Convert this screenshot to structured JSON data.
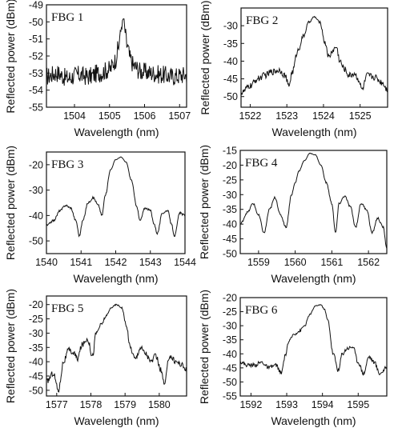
{
  "chart_data": [
    {
      "type": "line",
      "title": "FBG 1",
      "xlabel": "Wavelength (nm)",
      "ylabel": "Reflected power (dBm)",
      "xlim": [
        1503.2,
        1507.2
      ],
      "ylim": [
        -55,
        -49
      ],
      "xticks": [
        1504,
        1505,
        1506,
        1507
      ],
      "yticks": [
        -55,
        -54,
        -53,
        -52,
        -51,
        -50,
        -49
      ],
      "noise": 0.55,
      "x": [
        1503.2,
        1503.5,
        1503.8,
        1504.1,
        1504.4,
        1504.7,
        1505.0,
        1505.15,
        1505.25,
        1505.3,
        1505.35,
        1505.4,
        1505.45,
        1505.5,
        1505.6,
        1505.7,
        1505.9,
        1506.2,
        1506.5,
        1506.8,
        1507.2
      ],
      "y": [
        -53.2,
        -53.0,
        -53.3,
        -53.1,
        -53.2,
        -53.0,
        -52.8,
        -52.3,
        -51.6,
        -50.8,
        -50.2,
        -49.8,
        -50.6,
        -51.4,
        -52.2,
        -52.6,
        -52.9,
        -53.0,
        -53.1,
        -53.2,
        -53.1
      ]
    },
    {
      "type": "line",
      "title": "FBG 2",
      "xlabel": "Wavelength (nm)",
      "ylabel": "Reflected power (dBm)",
      "xlim": [
        1521.75,
        1525.75
      ],
      "ylim": [
        -53,
        -25
      ],
      "xticks": [
        1522,
        1523,
        1524,
        1525
      ],
      "yticks": [
        -50,
        -45,
        -40,
        -35,
        -30
      ],
      "noise": 0.9,
      "x": [
        1521.75,
        1522.0,
        1522.2,
        1522.4,
        1522.6,
        1522.8,
        1522.95,
        1523.05,
        1523.15,
        1523.3,
        1523.45,
        1523.6,
        1523.75,
        1523.9,
        1524.05,
        1524.15,
        1524.25,
        1524.35,
        1524.45,
        1524.55,
        1524.7,
        1524.85,
        1524.95,
        1525.05,
        1525.2,
        1525.4,
        1525.6,
        1525.75
      ],
      "y": [
        -49,
        -47,
        -45,
        -44,
        -43,
        -42.5,
        -44,
        -47,
        -43,
        -37,
        -33,
        -29,
        -27.5,
        -29,
        -35,
        -39,
        -37,
        -36,
        -40,
        -42,
        -44,
        -43.5,
        -45,
        -48,
        -44,
        -44.5,
        -46,
        -48
      ]
    },
    {
      "type": "line",
      "title": "FBG 3",
      "xlabel": "Wavelength (nm)",
      "ylabel": "Reflected power (dBm)",
      "xlim": [
        1540,
        1544
      ],
      "ylim": [
        -55,
        -15
      ],
      "xticks": [
        1540,
        1541,
        1542,
        1543,
        1544
      ],
      "yticks": [
        -50,
        -40,
        -30,
        -20
      ],
      "noise": 0.4,
      "x": [
        1540.0,
        1540.2,
        1540.4,
        1540.55,
        1540.7,
        1540.85,
        1540.95,
        1541.05,
        1541.2,
        1541.35,
        1541.5,
        1541.6,
        1541.7,
        1541.85,
        1542.0,
        1542.15,
        1542.3,
        1542.45,
        1542.6,
        1542.7,
        1542.85,
        1543.0,
        1543.1,
        1543.2,
        1543.35,
        1543.5,
        1543.6,
        1543.7,
        1543.85,
        1544.0
      ],
      "y": [
        -44,
        -42,
        -38,
        -36,
        -37,
        -42,
        -48,
        -42,
        -35,
        -33,
        -36,
        -40,
        -32,
        -22,
        -18,
        -17,
        -19,
        -26,
        -36,
        -42,
        -37,
        -38,
        -43,
        -47,
        -39,
        -38,
        -43,
        -48,
        -39,
        -40
      ]
    },
    {
      "type": "line",
      "title": "FBG 4",
      "xlabel": "Wavelength (nm)",
      "ylabel": "Reflected power (dBm)",
      "xlim": [
        1558.5,
        1562.5
      ],
      "ylim": [
        -50,
        -15
      ],
      "xticks": [
        1559,
        1560,
        1561,
        1562
      ],
      "yticks": [
        -50,
        -45,
        -40,
        -35,
        -30,
        -25,
        -20,
        -15
      ],
      "noise": 0.35,
      "x": [
        1558.5,
        1558.7,
        1558.85,
        1559.0,
        1559.15,
        1559.3,
        1559.45,
        1559.6,
        1559.75,
        1559.9,
        1560.0,
        1560.1,
        1560.25,
        1560.4,
        1560.55,
        1560.7,
        1560.85,
        1561.0,
        1561.1,
        1561.2,
        1561.35,
        1561.5,
        1561.65,
        1561.8,
        1561.95,
        1562.1,
        1562.25,
        1562.4,
        1562.5
      ],
      "y": [
        -40,
        -36,
        -33,
        -37,
        -43,
        -35,
        -31,
        -37,
        -41,
        -30,
        -26,
        -22,
        -18.5,
        -16,
        -16.5,
        -20,
        -26,
        -33,
        -43,
        -33,
        -30.5,
        -34,
        -41,
        -33,
        -35,
        -43,
        -38,
        -41,
        -48
      ]
    },
    {
      "type": "line",
      "title": "FBG 5",
      "xlabel": "Wavelength (nm)",
      "ylabel": "Reflected power (dBm)",
      "xlim": [
        1576.7,
        1580.8
      ],
      "ylim": [
        -52,
        -17
      ],
      "xticks": [
        1577,
        1578,
        1579,
        1580
      ],
      "yticks": [
        -50,
        -45,
        -40,
        -35,
        -30,
        -25,
        -20
      ],
      "noise": 1.0,
      "x": [
        1576.7,
        1576.9,
        1577.05,
        1577.2,
        1577.35,
        1577.5,
        1577.6,
        1577.75,
        1577.9,
        1578.05,
        1578.15,
        1578.3,
        1578.45,
        1578.6,
        1578.75,
        1578.9,
        1579.05,
        1579.15,
        1579.3,
        1579.45,
        1579.6,
        1579.75,
        1579.9,
        1580.05,
        1580.15,
        1580.3,
        1580.5,
        1580.65,
        1580.8
      ],
      "y": [
        -47,
        -44,
        -50,
        -40,
        -36,
        -37,
        -39,
        -34,
        -32,
        -38,
        -30,
        -27,
        -24,
        -21,
        -20,
        -21,
        -28,
        -35,
        -39,
        -35,
        -37,
        -40,
        -38,
        -43,
        -48,
        -38,
        -40,
        -41,
        -43
      ]
    },
    {
      "type": "line",
      "title": "FBG 6",
      "xlabel": "Wavelength (nm)",
      "ylabel": "Reflected power (dBm)",
      "xlim": [
        1591.7,
        1595.8
      ],
      "ylim": [
        -55,
        -20
      ],
      "xticks": [
        1592,
        1593,
        1594,
        1595
      ],
      "yticks": [
        -55,
        -50,
        -45,
        -40,
        -35,
        -30,
        -25,
        -20
      ],
      "noise": 0.7,
      "x": [
        1591.7,
        1591.9,
        1592.1,
        1592.3,
        1592.5,
        1592.7,
        1592.85,
        1592.95,
        1593.05,
        1593.2,
        1593.35,
        1593.5,
        1593.65,
        1593.8,
        1593.95,
        1594.05,
        1594.15,
        1594.3,
        1594.45,
        1594.55,
        1594.7,
        1594.85,
        1595.0,
        1595.15,
        1595.3,
        1595.45,
        1595.6,
        1595.8
      ],
      "y": [
        -43,
        -44,
        -44,
        -43,
        -45,
        -44,
        -47,
        -41,
        -36,
        -33,
        -32,
        -30,
        -26,
        -23,
        -22.5,
        -24,
        -28,
        -40,
        -46,
        -40,
        -38,
        -37.5,
        -43,
        -47,
        -41,
        -43,
        -47,
        -45
      ]
    }
  ]
}
